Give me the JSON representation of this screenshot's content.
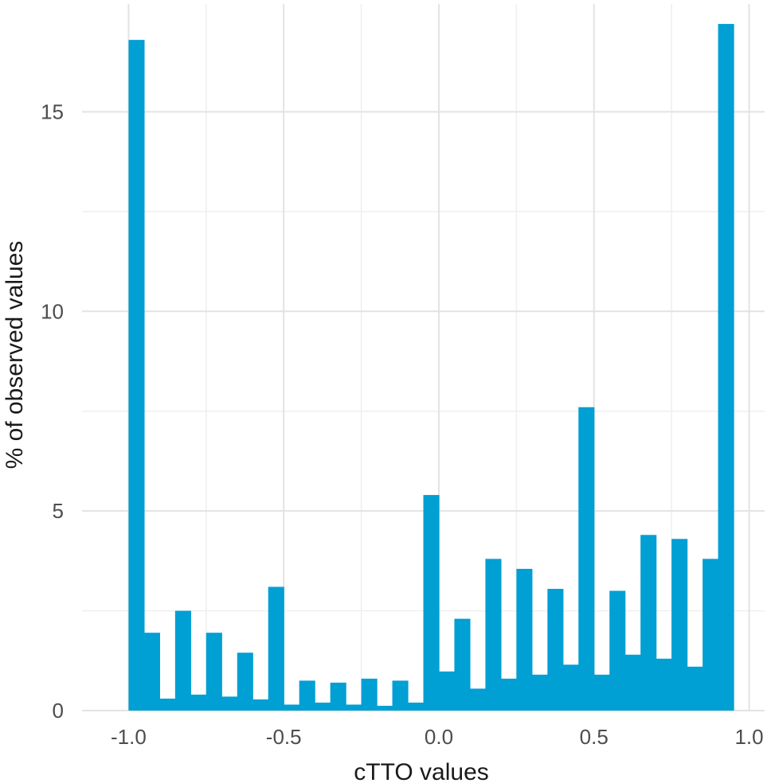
{
  "chart_data": {
    "type": "bar",
    "title": "",
    "xlabel": "cTTO values",
    "ylabel": "% of observed values",
    "xlim": [
      -1.15,
      1.05
    ],
    "ylim": [
      0,
      17.7
    ],
    "bin_width": 0.05,
    "bar_color": "#009fd4",
    "grid": true,
    "x_ticks": [
      -1.0,
      -0.5,
      0.0,
      0.5,
      1.0
    ],
    "x_tick_labels": [
      "-1.0",
      "-0.5",
      "0.0",
      "0.5",
      "1.0"
    ],
    "y_ticks": [
      0,
      5,
      10,
      15
    ],
    "y_tick_labels": [
      "0",
      "5",
      "10",
      "15"
    ],
    "bins": [
      {
        "center": -0.975,
        "value": 16.8
      },
      {
        "center": -0.925,
        "value": 1.95
      },
      {
        "center": -0.875,
        "value": 0.3
      },
      {
        "center": -0.825,
        "value": 2.5
      },
      {
        "center": -0.775,
        "value": 0.4
      },
      {
        "center": -0.725,
        "value": 1.95
      },
      {
        "center": -0.675,
        "value": 0.35
      },
      {
        "center": -0.625,
        "value": 1.45
      },
      {
        "center": -0.575,
        "value": 0.28
      },
      {
        "center": -0.525,
        "value": 3.1
      },
      {
        "center": -0.475,
        "value": 0.15
      },
      {
        "center": -0.425,
        "value": 0.75
      },
      {
        "center": -0.375,
        "value": 0.2
      },
      {
        "center": -0.325,
        "value": 0.7
      },
      {
        "center": -0.275,
        "value": 0.15
      },
      {
        "center": -0.225,
        "value": 0.8
      },
      {
        "center": -0.175,
        "value": 0.12
      },
      {
        "center": -0.125,
        "value": 0.75
      },
      {
        "center": -0.075,
        "value": 0.2
      },
      {
        "center": -0.025,
        "value": 5.4
      },
      {
        "center": 0.025,
        "value": 0.98
      },
      {
        "center": 0.075,
        "value": 2.3
      },
      {
        "center": 0.125,
        "value": 0.55
      },
      {
        "center": 0.175,
        "value": 3.8
      },
      {
        "center": 0.225,
        "value": 0.8
      },
      {
        "center": 0.275,
        "value": 3.55
      },
      {
        "center": 0.325,
        "value": 0.9
      },
      {
        "center": 0.375,
        "value": 3.05
      },
      {
        "center": 0.425,
        "value": 1.15
      },
      {
        "center": 0.475,
        "value": 7.6
      },
      {
        "center": 0.525,
        "value": 0.9
      },
      {
        "center": 0.575,
        "value": 3.0
      },
      {
        "center": 0.625,
        "value": 1.4
      },
      {
        "center": 0.675,
        "value": 4.4
      },
      {
        "center": 0.725,
        "value": 1.3
      },
      {
        "center": 0.775,
        "value": 4.3
      },
      {
        "center": 0.825,
        "value": 1.1
      },
      {
        "center": 0.875,
        "value": 3.8
      },
      {
        "center": 0.925,
        "value": 17.2
      }
    ]
  }
}
